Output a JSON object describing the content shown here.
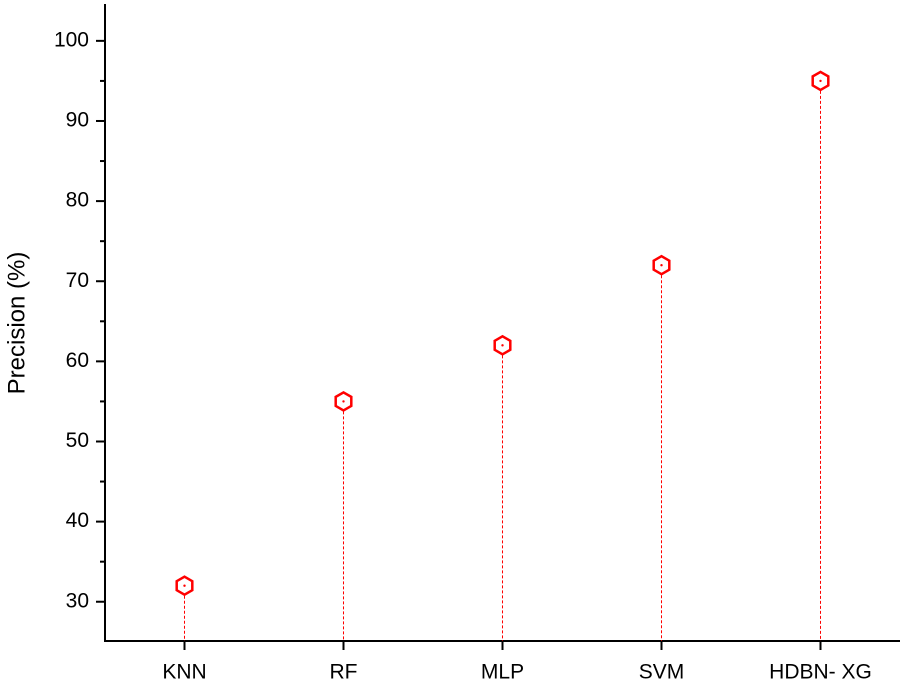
{
  "chart_data": {
    "type": "lollipop",
    "y_label": "Precision (%)",
    "categories": [
      "KNN",
      "RF",
      "MLP",
      "SVM",
      "HDBN- XG"
    ],
    "values": [
      32,
      55,
      62,
      72,
      95
    ],
    "color": "#ff0000",
    "ylim": [
      25.1,
      104.6
    ],
    "yticks": [
      30,
      40,
      50,
      60,
      70,
      80,
      90,
      100
    ],
    "grid": false
  }
}
